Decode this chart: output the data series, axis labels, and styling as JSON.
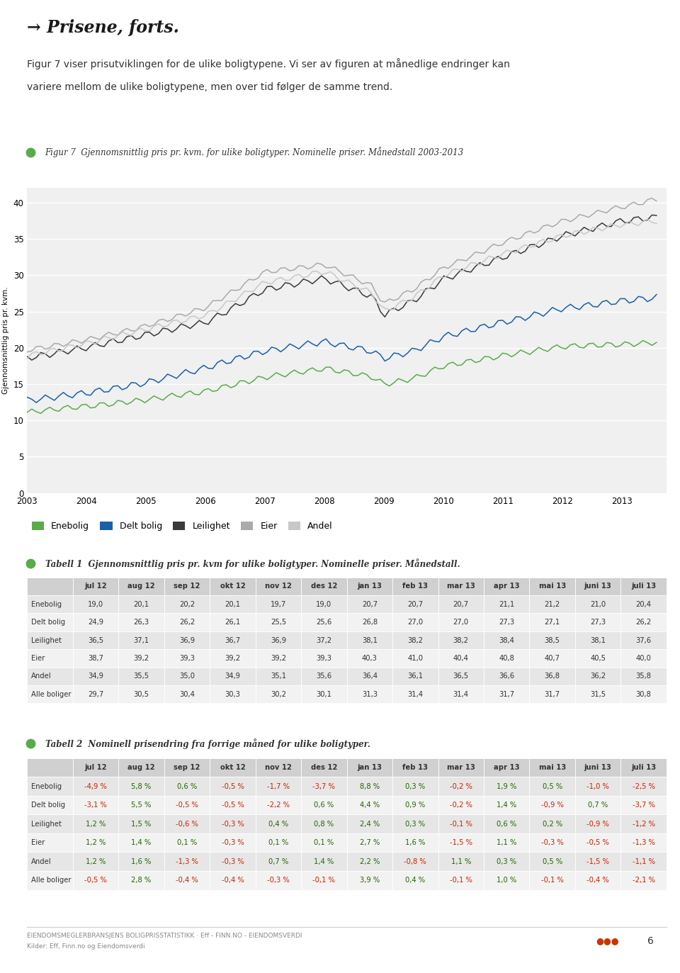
{
  "title_page": "→ Prisene, forts.",
  "subtitle_line1": "Figur 7 viser prisutviklingen for de ulike boligtypene. Vi ser av figuren at månedlige endringer kan",
  "subtitle_line2": "variere mellom de ulike boligtypene, men over tid følger de samme trend.",
  "figur_label": "Figur 7  Gjennomsnittlig pris pr. kvm. for ulike boligtyper. Nominelle priser. Månedstall 2003-2013",
  "tabell1_label": "Tabell 1  Gjennomsnittlig pris pr. kvm for ulike boligtyper. Nominelle priser. Månedstall.",
  "tabell2_label": "Tabell 2  Nominell prisendring fra forrige måned for ulike boligtyper.",
  "ylabel": "Gjennomsnittlig pris pr. kvm.",
  "xlim": [
    2003,
    2013.75
  ],
  "ylim": [
    0,
    42
  ],
  "yticks": [
    0,
    5,
    10,
    15,
    20,
    25,
    30,
    35,
    40
  ],
  "xticks": [
    2003,
    2004,
    2005,
    2006,
    2007,
    2008,
    2009,
    2010,
    2011,
    2012,
    2013
  ],
  "legend_labels": [
    "Enebolig",
    "Delt bolig",
    "Leilighet",
    "Eier",
    "Andel"
  ],
  "line_colors": [
    "#5aab4a",
    "#1a5fa8",
    "#3a3a3a",
    "#aaaaaa",
    "#c8c8c8"
  ],
  "background_color": "#ffffff",
  "plot_bg_color": "#f0f0f0",
  "grid_color": "#ffffff",
  "tabell1_columns": [
    "",
    "jul 12",
    "aug 12",
    "sep 12",
    "okt 12",
    "nov 12",
    "des 12",
    "jan 13",
    "feb 13",
    "mar 13",
    "apr 13",
    "mai 13",
    "juni 13",
    "juli 13"
  ],
  "tabell1_rows": [
    [
      "Enebolig",
      "19,0",
      "20,1",
      "20,2",
      "20,1",
      "19,7",
      "19,0",
      "20,7",
      "20,7",
      "20,7",
      "21,1",
      "21,2",
      "21,0",
      "20,4"
    ],
    [
      "Delt bolig",
      "24,9",
      "26,3",
      "26,2",
      "26,1",
      "25,5",
      "25,6",
      "26,8",
      "27,0",
      "27,0",
      "27,3",
      "27,1",
      "27,3",
      "26,2"
    ],
    [
      "Leilighet",
      "36,5",
      "37,1",
      "36,9",
      "36,7",
      "36,9",
      "37,2",
      "38,1",
      "38,2",
      "38,2",
      "38,4",
      "38,5",
      "38,1",
      "37,6"
    ],
    [
      "Eier",
      "38,7",
      "39,2",
      "39,3",
      "39,2",
      "39,2",
      "39,3",
      "40,3",
      "41,0",
      "40,4",
      "40,8",
      "40,7",
      "40,5",
      "40,0"
    ],
    [
      "Andel",
      "34,9",
      "35,5",
      "35,0",
      "34,9",
      "35,1",
      "35,6",
      "36,4",
      "36,1",
      "36,5",
      "36,6",
      "36,8",
      "36,2",
      "35,8"
    ],
    [
      "Alle boliger",
      "29,7",
      "30,5",
      "30,4",
      "30,3",
      "30,2",
      "30,1",
      "31,3",
      "31,4",
      "31,4",
      "31,7",
      "31,7",
      "31,5",
      "30,8"
    ]
  ],
  "tabell2_columns": [
    "",
    "jul 12",
    "aug 12",
    "sep 12",
    "okt 12",
    "nov 12",
    "des 12",
    "jan 13",
    "feb 13",
    "mar 13",
    "apr 13",
    "mai 13",
    "juni 13",
    "juli 13"
  ],
  "tabell2_rows": [
    [
      "Enebolig",
      "-4,9 %",
      "5,8 %",
      "0,6 %",
      "-0,5 %",
      "-1,7 %",
      "-3,7 %",
      "8,8 %",
      "0,3 %",
      "-0,2 %",
      "1,9 %",
      "0,5 %",
      "-1,0 %",
      "-2,5 %"
    ],
    [
      "Delt bolig",
      "-3,1 %",
      "5,5 %",
      "-0,5 %",
      "-0,5 %",
      "-2,2 %",
      "0,6 %",
      "4,4 %",
      "0,9 %",
      "-0,2 %",
      "1,4 %",
      "-0,9 %",
      "0,7 %",
      "-3,7 %"
    ],
    [
      "Leilighet",
      "1,2 %",
      "1,5 %",
      "-0,6 %",
      "-0,3 %",
      "0,4 %",
      "0,8 %",
      "2,4 %",
      "0,3 %",
      "-0,1 %",
      "0,6 %",
      "0,2 %",
      "-0,9 %",
      "-1,2 %"
    ],
    [
      "Eier",
      "1,2 %",
      "1,4 %",
      "0,1 %",
      "-0,3 %",
      "0,1 %",
      "0,1 %",
      "2,7 %",
      "1,6 %",
      "-1,5 %",
      "1,1 %",
      "-0,3 %",
      "-0,5 %",
      "-1,3 %"
    ],
    [
      "Andel",
      "1,2 %",
      "1,6 %",
      "-1,3 %",
      "-0,3 %",
      "0,7 %",
      "1,4 %",
      "2,2 %",
      "-0,8 %",
      "1,1 %",
      "0,3 %",
      "0,5 %",
      "-1,5 %",
      "-1,1 %"
    ],
    [
      "Alle boliger",
      "-0,5 %",
      "2,8 %",
      "-0,4 %",
      "-0,4 %",
      "-0,3 %",
      "-0,1 %",
      "3,9 %",
      "0,4 %",
      "-0,1 %",
      "1,0 %",
      "-0,1 %",
      "-0,4 %",
      "-2,1 %"
    ]
  ],
  "footer_left": "EIENDOMSMEGLERBRANSJENS BOLIGPRISSTATISTIKK · Eff - FINN.NO - EIENDOMSVERDI",
  "footer_left2": "Kilder: Eff, Finn.no og Eiendomsverdi",
  "footer_page": "6",
  "footer_dots_color": "#cc3300",
  "green_dot_color": "#5aab4a"
}
